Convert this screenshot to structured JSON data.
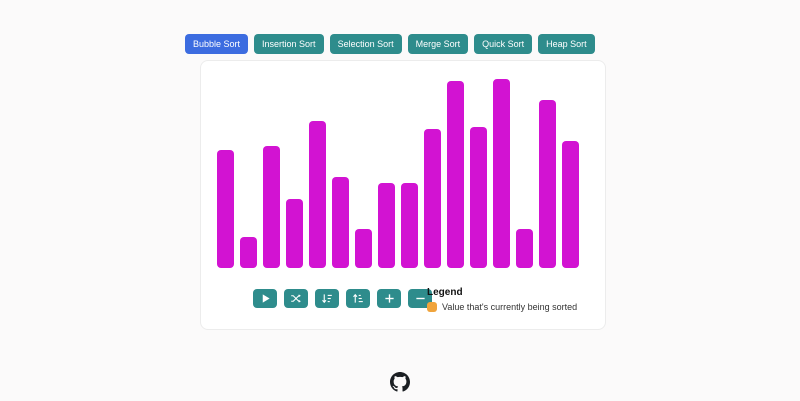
{
  "tabs": [
    {
      "label": "Bubble Sort",
      "active": true
    },
    {
      "label": "Insertion Sort",
      "active": false
    },
    {
      "label": "Selection Sort",
      "active": false
    },
    {
      "label": "Merge Sort",
      "active": false
    },
    {
      "label": "Quick Sort",
      "active": false
    },
    {
      "label": "Heap Sort",
      "active": false
    }
  ],
  "controls": [
    {
      "icon": "play-icon",
      "name": "play-button"
    },
    {
      "icon": "shuffle-icon",
      "name": "shuffle-button"
    },
    {
      "icon": "sort-descending-icon",
      "name": "sort-descending-button"
    },
    {
      "icon": "sort-ascending-icon",
      "name": "sort-ascending-button"
    },
    {
      "icon": "plus-icon",
      "name": "add-bar-button"
    },
    {
      "icon": "minus-icon",
      "name": "remove-bar-button"
    }
  ],
  "legend": {
    "title": "Legend",
    "items": [
      {
        "color": "#f0a43c",
        "label": "Value that's currently being sorted"
      }
    ]
  },
  "footer": {
    "icon": "github-icon"
  },
  "chart_data": {
    "type": "bar",
    "values": [
      61,
      16,
      63,
      36,
      76,
      47,
      20,
      44,
      44,
      72,
      97,
      73,
      98,
      20,
      87,
      66
    ],
    "ylim": [
      0,
      100
    ],
    "title": "",
    "xlabel": "",
    "ylabel": "",
    "grid": false,
    "legend_position": "below-right",
    "bar_color": "#d213d2"
  },
  "colors": {
    "active_tab": "#3c6ce0",
    "tab": "#2e8c8c",
    "bar": "#d213d2",
    "legend_swatch": "#f0a43c",
    "background": "#fbfafa",
    "card_background": "#ffffff"
  }
}
